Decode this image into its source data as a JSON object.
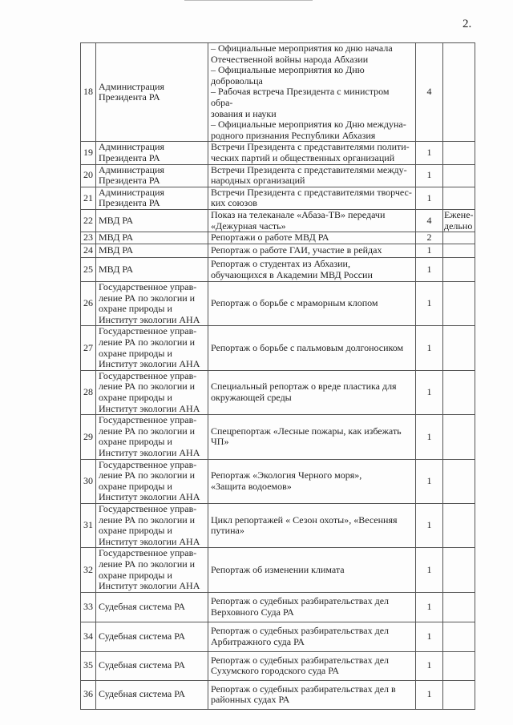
{
  "page_number": "2.",
  "rows": [
    {
      "n": "18",
      "org": "Администрация\nПрезидента РА",
      "desc": "– Официальные мероприятия ко дню начала\nОтечественной войны народа Абхазии\n– Официальные мероприятия ко Дню\nдобровольца\n– Рабочая встреча Президента с министром обра-\nзования и науки\n– Официальные мероприятия ко Дню междуна-\nродного признания Республики Абхазия",
      "count": "4",
      "period": ""
    },
    {
      "n": "19",
      "org": "Администрация\nПрезидента РА",
      "desc": "Встречи Президента с представителями полити-\nческих партий и общественных организаций",
      "count": "1",
      "period": ""
    },
    {
      "n": "20",
      "org": "Администрация\nПрезидента РА",
      "desc": "Встречи Президента с представителями между-\nнародных организаций",
      "count": "1",
      "period": ""
    },
    {
      "n": "21",
      "org": "Администрация\nПрезидента РА",
      "desc": "Встречи Президента с представителями творчес-\nких союзов",
      "count": "1",
      "period": ""
    },
    {
      "n": "22",
      "org": "МВД РА",
      "desc": "Показ на телеканале «Абаза-ТВ»  передачи\n«Дежурная часть»",
      "count": "4",
      "period": "Ежене-\nдельно"
    },
    {
      "n": "23",
      "org": "МВД РА",
      "desc": "Репортажи  о работе МВД РА",
      "count": "2",
      "period": ""
    },
    {
      "n": "24",
      "org": "МВД РА",
      "desc": "Репортаж о работе ГАИ, участие в рейдах",
      "count": "1",
      "period": ""
    },
    {
      "n": "25",
      "org": "МВД РА",
      "desc": "Репортаж о студентах из Абхазии,\nобучающихся в Академии МВД России",
      "count": "1",
      "period": ""
    },
    {
      "n": "26",
      "org": "Государственное управ-\nление РА по экологии и\nохране природы и\nИнститут экологии АНА",
      "desc": "Репортаж о борьбе с мраморным клопом",
      "count": "1",
      "period": ""
    },
    {
      "n": "27",
      "org": "Государственное управ-\nление РА по экологии и\nохране природы и\nИнститут экологии АНА",
      "desc": "Репортаж о борьбе с  пальмовым долгоносиком",
      "count": "1",
      "period": ""
    },
    {
      "n": "28",
      "org": "Государственное управ-\nление РА по экологии и\nохране природы и\nИнститут экологии АНА",
      "desc": "Специальный репортаж о вреде пластика для\nокружающей среды",
      "count": "1",
      "period": ""
    },
    {
      "n": "29",
      "org": "Государственное управ-\nление РА по экологии и\nохране природы и\nИнститут экологии АНА",
      "desc": "Спецрепортаж  «Лесные пожары, как избежать\nЧП»",
      "count": "1",
      "period": ""
    },
    {
      "n": "30",
      "org": "Государственное управ-\nление РА по экологии и\nохране природы и\nИнститут экологии АНА",
      "desc": "Репортаж  «Экология Черного моря»,\n«Защита водоемов»",
      "count": "1",
      "period": ""
    },
    {
      "n": "31",
      "org": "Государственное управ-\nление РА по экологии и\nохране природы и\nИнститут экологии АНА",
      "desc": "Цикл репортажей « Сезон охоты», «Весенняя\nпутина»",
      "count": "1",
      "period": ""
    },
    {
      "n": "32",
      "org": "Государственное управ-\nление РА по экологии и\nохране природы и\nИнститут экологии АНА",
      "desc": "Репортаж об изменении климата",
      "count": "1",
      "period": ""
    },
    {
      "n": "33",
      "org": "Судебная система РА",
      "desc": "Репортаж о судебных разбирательствах  дел\nВерховного Суда РА",
      "count": "1",
      "period": ""
    },
    {
      "n": "34",
      "org": "Судебная система РА",
      "desc": "Репортаж о судебных  разбирательствах  дел\nАрбитражного суда РА",
      "count": "1",
      "period": ""
    },
    {
      "n": "35",
      "org": "Судебная система РА",
      "desc": "Репортаж о судебных разбирательствах дел\nСухумского городского суда РА",
      "count": "1",
      "period": ""
    },
    {
      "n": "36",
      "org": "Судебная система РА",
      "desc": "Репортаж о судебных разбирательствах дел  в\nрайонных  судах РА",
      "count": "1",
      "period": ""
    }
  ]
}
